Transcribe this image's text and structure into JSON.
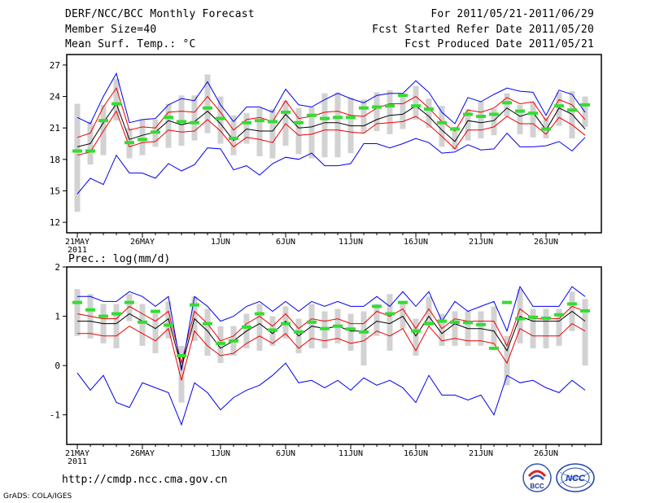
{
  "header": {
    "title": "DERF/NCC/BCC Monthly Forecast",
    "member_size": "Member Size=40",
    "variable": "Mean Surf. Temp.: °C",
    "period": "For 2011/05/21-2011/06/29",
    "started": "Fcst Started Refer Date 2011/05/20",
    "produced": "Fcst Produced Date 2011/05/21"
  },
  "footer": {
    "url": "http://cmdp.ncc.cma.gov.cn",
    "credit": "GrADS: COLA/IGES"
  },
  "logos": {
    "bcc": "BCC",
    "ncc": "NCC"
  },
  "colors": {
    "max_min": "#0000ee",
    "spread": "#ee0000",
    "mean": "#000000",
    "box": "#d2d2d2",
    "median": "#33dd33"
  },
  "chart_data": [
    {
      "type": "line",
      "title": "Mean Surf. Temp.: °C",
      "ylim": [
        11,
        28
      ],
      "yticks": [
        12,
        15,
        18,
        21,
        24,
        27
      ],
      "x": [
        1,
        2,
        3,
        4,
        5,
        6,
        7,
        8,
        9,
        10,
        11,
        12,
        13,
        14,
        15,
        16,
        17,
        18,
        19,
        20,
        21,
        22,
        23,
        24,
        25,
        26,
        27,
        28,
        29,
        30,
        31,
        32,
        33,
        34,
        35,
        36,
        37,
        38,
        39,
        40
      ],
      "xtick_positions": [
        1,
        6,
        12,
        17,
        22,
        27,
        32,
        37
      ],
      "xtick_labels": [
        "21MAY",
        "26MAY",
        "1JUN",
        "6JUN",
        "11JUN",
        "16JUN",
        "21JUN",
        "26JUN"
      ],
      "year_label": "2011",
      "series": [
        {
          "name": "max",
          "values": [
            22.0,
            21.4,
            24.0,
            26.2,
            21.5,
            21.8,
            21.9,
            23.2,
            23.8,
            23.6,
            25.4,
            23.2,
            21.6,
            23.0,
            23.0,
            22.5,
            24.7,
            23.2,
            23.0,
            23.7,
            24.3,
            23.8,
            23.4,
            24.1,
            24.3,
            24.3,
            25.5,
            24.4,
            22.5,
            21.4,
            23.9,
            23.5,
            24.2,
            24.8,
            24.5,
            24.4,
            22.2,
            24.6,
            24.2,
            22.5
          ]
        },
        {
          "name": "spread_upper",
          "values": [
            20.1,
            20.5,
            23.0,
            24.8,
            20.8,
            21.1,
            21.0,
            22.5,
            22.6,
            22.5,
            24.0,
            22.5,
            20.8,
            21.8,
            22.0,
            21.6,
            23.6,
            21.9,
            22.1,
            22.5,
            22.6,
            22.2,
            22.1,
            22.9,
            23.3,
            23.3,
            24.0,
            22.9,
            21.6,
            20.7,
            22.7,
            22.5,
            22.9,
            23.9,
            23.3,
            23.5,
            21.7,
            23.7,
            23.2,
            21.8
          ]
        },
        {
          "name": "mean",
          "values": [
            19.2,
            19.5,
            21.5,
            23.3,
            19.9,
            20.3,
            20.6,
            21.7,
            21.3,
            21.6,
            22.6,
            21.4,
            19.8,
            20.9,
            20.7,
            20.7,
            22.3,
            21.0,
            21.1,
            21.5,
            21.5,
            21.2,
            21.2,
            21.8,
            22.2,
            22.3,
            23.1,
            22.1,
            20.8,
            19.7,
            21.7,
            21.5,
            21.7,
            22.9,
            22.1,
            22.5,
            20.8,
            22.9,
            22.3,
            20.9
          ]
        },
        {
          "name": "spread_lower",
          "values": [
            18.4,
            18.7,
            20.7,
            22.6,
            19.2,
            19.6,
            19.7,
            20.8,
            20.6,
            20.7,
            21.8,
            20.7,
            19.2,
            20.1,
            19.9,
            19.6,
            21.4,
            20.3,
            20.4,
            20.8,
            20.8,
            20.6,
            20.5,
            21.4,
            21.5,
            21.6,
            22.1,
            21.3,
            20.2,
            19.0,
            20.8,
            20.8,
            21.1,
            22.1,
            21.4,
            21.4,
            20.4,
            22.0,
            21.3,
            20.3
          ]
        },
        {
          "name": "min",
          "values": [
            14.7,
            16.2,
            15.6,
            18.4,
            16.7,
            16.7,
            16.2,
            17.6,
            16.9,
            17.5,
            19.1,
            19.0,
            17.0,
            17.4,
            16.5,
            17.6,
            18.2,
            18.0,
            18.6,
            17.4,
            17.4,
            17.6,
            19.5,
            19.5,
            19.1,
            19.5,
            20.0,
            19.6,
            18.6,
            18.7,
            19.4,
            18.9,
            19.0,
            20.5,
            19.2,
            19.2,
            19.3,
            19.7,
            18.8,
            20.1
          ]
        },
        {
          "name": "box_top",
          "values": [
            23.3,
            21.6,
            23.2,
            25.7,
            21.0,
            21.8,
            21.8,
            23.3,
            24.1,
            24.1,
            26.1,
            24.0,
            22.2,
            22.4,
            22.9,
            22.8,
            23.6,
            22.9,
            23.0,
            24.3,
            24.4,
            23.9,
            23.7,
            24.4,
            24.6,
            24.3,
            25.0,
            23.8,
            23.1,
            21.1,
            22.8,
            23.5,
            22.8,
            24.3,
            23.2,
            23.5,
            22.0,
            24.4,
            24.5,
            24.0
          ]
        },
        {
          "name": "box_bottom",
          "values": [
            13.0,
            17.5,
            18.4,
            21.7,
            18.1,
            18.4,
            19.2,
            19.1,
            19.3,
            19.8,
            20.5,
            19.5,
            18.4,
            19.5,
            18.3,
            18.1,
            19.3,
            18.5,
            18.1,
            18.2,
            18.2,
            18.6,
            20.5,
            20.7,
            20.4,
            20.9,
            21.8,
            21.0,
            19.2,
            18.9,
            19.8,
            20.0,
            20.3,
            22.1,
            20.4,
            20.1,
            20.0,
            21.2,
            20.0,
            21.1
          ]
        },
        {
          "name": "median",
          "values": [
            18.8,
            18.8,
            21.7,
            23.3,
            19.6,
            19.9,
            20.6,
            22.0,
            21.6,
            21.5,
            22.9,
            21.9,
            20.0,
            21.5,
            21.7,
            21.6,
            22.5,
            21.5,
            22.2,
            21.9,
            22.0,
            22.0,
            22.9,
            23.0,
            23.1,
            24.1,
            23.1,
            22.8,
            21.5,
            20.9,
            22.3,
            22.1,
            22.3,
            23.4,
            22.6,
            22.4,
            20.9,
            23.1,
            22.7,
            23.2
          ]
        }
      ]
    },
    {
      "type": "line",
      "title": "Prec.: log(mm/d)",
      "ylim": [
        -1.6,
        2.0
      ],
      "yticks": [
        -1,
        0,
        1,
        2
      ],
      "x": [
        1,
        2,
        3,
        4,
        5,
        6,
        7,
        8,
        9,
        10,
        11,
        12,
        13,
        14,
        15,
        16,
        17,
        18,
        19,
        20,
        21,
        22,
        23,
        24,
        25,
        26,
        27,
        28,
        29,
        30,
        31,
        32,
        33,
        34,
        35,
        36,
        37,
        38,
        39,
        40
      ],
      "xtick_positions": [
        1,
        6,
        12,
        17,
        22,
        27,
        32,
        37
      ],
      "xtick_labels": [
        "21MAY",
        "26MAY",
        "1JUN",
        "6JUN",
        "11JUN",
        "16JUN",
        "21JUN",
        "26JUN"
      ],
      "year_label": "2011",
      "series": [
        {
          "name": "max",
          "values": [
            1.4,
            1.4,
            1.3,
            1.3,
            1.5,
            1.4,
            1.2,
            1.4,
            -0.1,
            1.4,
            1.2,
            0.9,
            1.0,
            1.2,
            1.3,
            1.1,
            1.3,
            1.1,
            1.3,
            1.2,
            1.3,
            1.2,
            1.2,
            1.4,
            1.2,
            1.5,
            1.2,
            1.5,
            0.9,
            1.3,
            1.1,
            1.2,
            1.3,
            0.7,
            1.6,
            1.2,
            1.2,
            1.2,
            1.6,
            1.4
          ]
        },
        {
          "name": "spread_upper",
          "values": [
            1.05,
            1.0,
            0.95,
            0.95,
            1.2,
            1.05,
            0.9,
            1.1,
            0.05,
            1.1,
            0.85,
            0.5,
            0.6,
            0.85,
            1.0,
            0.8,
            1.05,
            0.75,
            0.95,
            0.9,
            0.95,
            0.85,
            0.85,
            1.1,
            1.0,
            1.15,
            0.75,
            1.15,
            0.75,
            0.95,
            0.9,
            0.9,
            0.9,
            0.4,
            1.15,
            0.95,
            0.95,
            0.95,
            1.2,
            1.1
          ]
        },
        {
          "name": "mean",
          "values": [
            0.9,
            0.9,
            0.85,
            0.85,
            1.05,
            0.9,
            0.75,
            0.95,
            -0.05,
            0.95,
            0.7,
            0.35,
            0.5,
            0.7,
            0.85,
            0.65,
            0.9,
            0.6,
            0.8,
            0.75,
            0.8,
            0.7,
            0.7,
            0.9,
            0.85,
            1.0,
            0.6,
            1.0,
            0.65,
            0.85,
            0.75,
            0.75,
            0.7,
            0.3,
            1.0,
            0.9,
            0.9,
            0.9,
            1.1,
            0.9
          ]
        },
        {
          "name": "spread_lower",
          "values": [
            0.65,
            0.65,
            0.6,
            0.6,
            0.8,
            0.65,
            0.5,
            0.75,
            -0.3,
            0.7,
            0.4,
            0.2,
            0.25,
            0.45,
            0.6,
            0.45,
            0.65,
            0.35,
            0.55,
            0.5,
            0.55,
            0.45,
            0.5,
            0.7,
            0.6,
            0.75,
            0.3,
            0.8,
            0.5,
            0.55,
            0.5,
            0.5,
            0.45,
            0.05,
            0.75,
            0.6,
            0.6,
            0.6,
            0.85,
            0.7
          ]
        },
        {
          "name": "min",
          "values": [
            -0.15,
            -0.5,
            -0.2,
            -0.75,
            -0.85,
            -0.35,
            -0.45,
            -0.55,
            -1.2,
            -0.35,
            -0.55,
            -0.9,
            -0.65,
            -0.5,
            -0.4,
            -0.2,
            0.05,
            -0.35,
            -0.3,
            -0.45,
            -0.3,
            -0.5,
            -0.25,
            -0.4,
            -0.3,
            -0.45,
            -0.75,
            -0.2,
            -0.6,
            -0.6,
            -0.7,
            -0.6,
            -1.0,
            -0.2,
            -0.35,
            -0.3,
            -0.45,
            -0.55,
            -0.3,
            -0.5
          ]
        },
        {
          "name": "box_top",
          "values": [
            1.55,
            1.45,
            1.25,
            1.25,
            1.45,
            1.25,
            1.1,
            1.3,
            0.4,
            1.4,
            1.15,
            0.8,
            0.8,
            1.05,
            1.25,
            1.0,
            1.2,
            0.95,
            1.25,
            1.1,
            1.15,
            1.05,
            1.1,
            1.25,
            1.45,
            1.3,
            0.95,
            1.4,
            1.05,
            1.1,
            1.1,
            1.1,
            1.2,
            0.6,
            1.55,
            1.15,
            1.15,
            1.15,
            1.5,
            1.35
          ]
        },
        {
          "name": "box_bottom",
          "values": [
            0.6,
            0.55,
            0.45,
            0.35,
            0.9,
            0.4,
            0.25,
            0.55,
            -0.75,
            0.5,
            0.2,
            0.05,
            0.2,
            0.35,
            0.3,
            0.4,
            0.55,
            0.25,
            0.35,
            0.35,
            0.45,
            0.3,
            0.0,
            0.6,
            0.3,
            0.75,
            0.2,
            0.8,
            0.4,
            0.4,
            0.4,
            0.4,
            0.4,
            -0.4,
            0.45,
            0.35,
            0.35,
            0.4,
            0.7,
            0.0
          ]
        },
        {
          "name": "median",
          "values": [
            1.28,
            1.13,
            1.0,
            1.05,
            1.28,
            0.88,
            1.1,
            0.82,
            0.2,
            1.23,
            0.85,
            0.45,
            0.5,
            0.78,
            1.05,
            0.72,
            0.85,
            0.68,
            0.88,
            0.75,
            0.8,
            0.74,
            0.68,
            1.2,
            1.05,
            1.28,
            0.7,
            0.85,
            0.9,
            0.88,
            0.87,
            0.83,
            0.35,
            1.28,
            0.95,
            0.98,
            0.96,
            1.03,
            1.25,
            1.11
          ]
        }
      ]
    }
  ]
}
